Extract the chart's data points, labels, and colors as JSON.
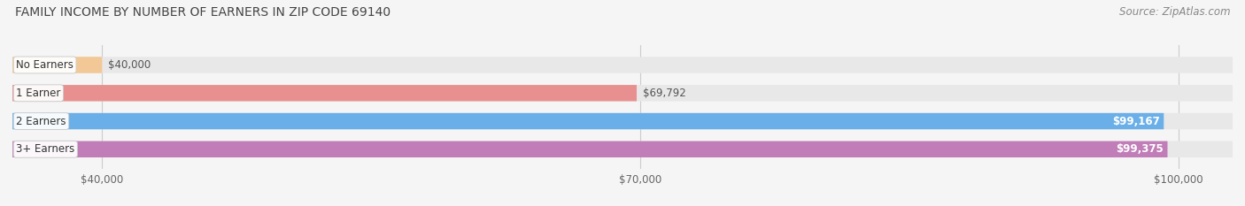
{
  "title": "Family Income by Number of Earners in Zip Code 69140",
  "source": "Source: ZipAtlas.com",
  "categories": [
    "No Earners",
    "1 Earner",
    "2 Earners",
    "3+ Earners"
  ],
  "values": [
    40000,
    69792,
    99167,
    99375
  ],
  "bar_colors": [
    "#f2c896",
    "#e89090",
    "#6aafe8",
    "#c07db8"
  ],
  "label_bg_colors": [
    "#f2c896",
    "#e89090",
    "#6aafe8",
    "#c07db8"
  ],
  "value_label_inside": [
    false,
    false,
    true,
    true
  ],
  "value_labels": [
    "$40,000",
    "$69,792",
    "$99,167",
    "$99,375"
  ],
  "x_ticks": [
    40000,
    70000,
    100000
  ],
  "x_tick_labels": [
    "$40,000",
    "$70,000",
    "$100,000"
  ],
  "data_min": 35000,
  "data_max": 103000,
  "background_color": "#f5f5f5",
  "bar_bg_color": "#e8e8e8",
  "title_fontsize": 10,
  "source_fontsize": 8.5,
  "bar_label_fontsize": 8.5,
  "value_fontsize": 8.5
}
